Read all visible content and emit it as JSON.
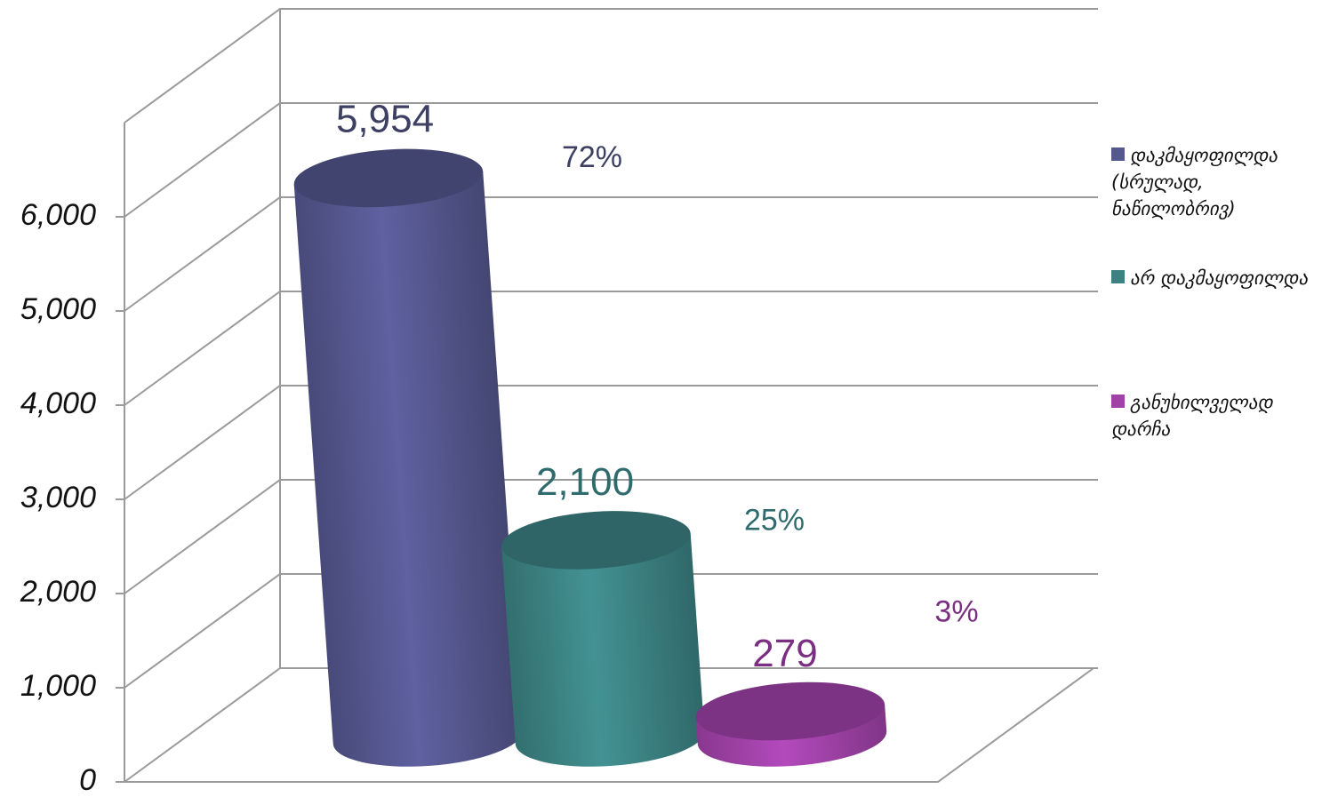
{
  "chart_data": {
    "type": "cylinder",
    "categories": [
      "დაკმაყოფილდა (სრულად, ნაწილობრივ)",
      "არ დაკმაყოფილდა",
      "განუხილველად დარჩა"
    ],
    "values": [
      5954,
      2100,
      279
    ],
    "value_labels": [
      "5,954",
      "2,100",
      "279"
    ],
    "annotations": [
      "72%",
      "25%",
      "3%"
    ],
    "colors": [
      "#55578f",
      "#3c8283",
      "#a042a8"
    ],
    "label_colors": [
      "#3d3f63",
      "#2f6b6d",
      "#7b2f83"
    ],
    "ylim": [
      0,
      7000
    ],
    "yticks": [
      0,
      {
        "value": 1000,
        "label": "1,000"
      },
      {
        "value": 2000,
        "label": "2,000"
      },
      {
        "value": 3000,
        "label": "3,000"
      },
      {
        "value": 4000,
        "label": "4,000"
      },
      {
        "value": 5000,
        "label": "5,000"
      },
      {
        "value": 6000,
        "label": "6,000"
      }
    ],
    "grid": true,
    "legend": "right"
  }
}
